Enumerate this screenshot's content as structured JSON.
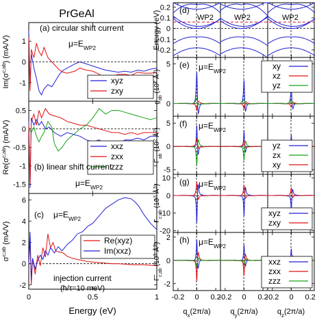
{
  "figure_title": "PrGeAl",
  "chart_data": [
    {
      "id": "a",
      "type": "line",
      "panel_label": "(a) circular shift current",
      "annotation": "μ=E",
      "annotation_sub": "WP2",
      "ylabel": "Im(σ^{c;ab}) (mA/V²)",
      "ylabel_main": "Im(σ",
      "ylabel_sup": "c;ab",
      "ylabel_rest": ") (mA/V",
      "ylabel_end": ")",
      "ylim": [
        -1.9,
        1.9
      ],
      "xlim": [
        0,
        1
      ],
      "yticks": [
        "-1",
        "0",
        "1"
      ],
      "legend_position": "bottom-right",
      "series": [
        {
          "name": "xyz",
          "color": "#1f1fd6",
          "x": [
            0,
            0.01,
            0.02,
            0.04,
            0.06,
            0.08,
            0.1,
            0.12,
            0.15,
            0.18,
            0.21,
            0.24,
            0.27,
            0.3,
            0.33,
            0.36,
            0.4,
            0.45,
            0.5,
            0.55,
            0.6,
            0.65,
            0.7,
            0.75,
            0.8,
            0.85,
            0.9,
            0.95,
            1.0
          ],
          "y": [
            1.5,
            -1.2,
            0.4,
            -0.3,
            -0.8,
            -1.4,
            -1.6,
            -1.3,
            -1.1,
            -1.2,
            -0.9,
            -0.6,
            -0.4,
            -0.3,
            -0.2,
            -0.1,
            0.0,
            -0.1,
            -0.2,
            -0.3,
            -0.4,
            -0.45,
            -0.5,
            -0.45,
            -0.5,
            -0.4,
            -0.45,
            -0.35,
            -0.3
          ]
        },
        {
          "name": "zxy",
          "color": "#e01010",
          "x": [
            0,
            0.01,
            0.02,
            0.04,
            0.06,
            0.08,
            0.1,
            0.12,
            0.15,
            0.18,
            0.21,
            0.24,
            0.27,
            0.3,
            0.33,
            0.36,
            0.4,
            0.45,
            0.5,
            0.55,
            0.6,
            0.65,
            0.7,
            0.75,
            0.8,
            0.85,
            0.9,
            0.95,
            1.0
          ],
          "y": [
            1.2,
            -1.4,
            0.6,
            0.2,
            0.9,
            0.5,
            0.3,
            0.7,
            0.2,
            0.0,
            -0.2,
            -0.4,
            -0.5,
            -0.55,
            -0.5,
            -0.45,
            -0.3,
            -0.4,
            -0.45,
            -0.6,
            -0.8,
            -0.7,
            -0.6,
            -0.6,
            -0.65,
            -0.5,
            -0.55,
            -0.55,
            -0.5
          ]
        }
      ]
    },
    {
      "id": "b",
      "type": "line",
      "panel_label": "(b)",
      "panel_text": "linear shift current",
      "annotation": "μ=E",
      "annotation_sub": "WP2",
      "ylabel_main": "Re(σ",
      "ylabel_sup": "c;ab",
      "ylabel_rest": ") (mA/V",
      "ylabel_end": ")",
      "ylim": [
        -1.75,
        0.75
      ],
      "xlim": [
        0,
        1
      ],
      "yticks": [
        "-1.5",
        "-1",
        "-0.5",
        "0",
        "0.5"
      ],
      "legend_position": "bottom-right",
      "series": [
        {
          "name": "xxz",
          "color": "#1f1fd6",
          "x": [
            0,
            0.01,
            0.02,
            0.04,
            0.06,
            0.08,
            0.1,
            0.13,
            0.16,
            0.2,
            0.25,
            0.3,
            0.35,
            0.4,
            0.45,
            0.5,
            0.55,
            0.6,
            0.65,
            0.7,
            0.75,
            0.8,
            0.85,
            0.9,
            0.95,
            1.0
          ],
          "y": [
            0.2,
            -1.6,
            0.3,
            0.1,
            0.25,
            0.1,
            0.2,
            0.0,
            0.05,
            -0.1,
            -0.2,
            -0.1,
            -0.15,
            -0.2,
            -0.3,
            -0.35,
            -0.3,
            -0.4,
            -0.35,
            -0.4,
            -0.3,
            -0.3,
            -0.25,
            -0.3,
            -0.2,
            -0.2
          ]
        },
        {
          "name": "zxx",
          "color": "#e01010",
          "x": [
            0,
            0.01,
            0.02,
            0.04,
            0.06,
            0.08,
            0.1,
            0.13,
            0.16,
            0.2,
            0.25,
            0.3,
            0.35,
            0.4,
            0.45,
            0.5,
            0.55,
            0.6,
            0.65,
            0.7,
            0.75,
            0.8,
            0.85,
            0.9,
            0.95,
            1.0
          ],
          "y": [
            0.1,
            -1.5,
            0.2,
            0.4,
            0.1,
            0.5,
            0.3,
            0.55,
            0.4,
            0.35,
            0.3,
            0.2,
            0.15,
            0.1,
            0.1,
            0.05,
            0.0,
            -0.05,
            -0.1,
            -0.1,
            -0.15,
            -0.1,
            -0.15,
            -0.1,
            -0.1,
            -0.1
          ]
        },
        {
          "name": "zzz",
          "color": "#18a018",
          "x": [
            0,
            0.02,
            0.04,
            0.06,
            0.08,
            0.1,
            0.12,
            0.15,
            0.18,
            0.2,
            0.23,
            0.26,
            0.3,
            0.35,
            0.4,
            0.45,
            0.5,
            0.55,
            0.6,
            0.65,
            0.7,
            0.75,
            0.8,
            0.85,
            0.9,
            0.95,
            1.0
          ],
          "y": [
            0.0,
            -0.1,
            0.05,
            -0.2,
            -0.35,
            -0.2,
            -0.1,
            0.2,
            0.05,
            -0.4,
            -0.6,
            -0.5,
            -0.3,
            -0.15,
            0.0,
            0.1,
            0.3,
            0.55,
            0.4,
            0.5,
            0.5,
            0.45,
            0.4,
            0.35,
            0.3,
            0.25,
            0.3
          ]
        }
      ]
    },
    {
      "id": "c",
      "type": "line",
      "panel_label": "(c)",
      "annotation": "μ=E",
      "annotation_sub": "WP2",
      "panel_text": "injection current",
      "panel_text2": "(ħ/τ=10 meV)",
      "ylabel_main": "σ",
      "ylabel_sup": "c;ab",
      "ylabel_rest": " (mA/V",
      "ylabel_end": ")",
      "ylim": [
        -2.4,
        6.6
      ],
      "xlim": [
        0,
        1
      ],
      "xlabel": "Energy (eV)",
      "xticks": [
        "0",
        "0.5",
        "1"
      ],
      "yticks": [
        "-2",
        "0",
        "2",
        "4",
        "6"
      ],
      "legend_position": "center-right",
      "series": [
        {
          "name": "Re(xyz)",
          "color": "#e01010",
          "x": [
            0,
            0.01,
            0.02,
            0.03,
            0.05,
            0.07,
            0.09,
            0.11,
            0.13,
            0.15,
            0.17,
            0.19,
            0.21,
            0.24,
            0.27,
            0.3,
            0.34,
            0.38,
            0.42,
            0.46,
            0.5,
            0.55,
            0.6,
            0.65,
            0.7,
            0.75,
            0.8,
            0.85,
            0.9,
            0.95,
            1.0
          ],
          "y": [
            0,
            2.2,
            -2.0,
            0.5,
            -1.0,
            0.8,
            -0.2,
            1.5,
            0.6,
            2.8,
            1.5,
            2.0,
            1.2,
            1.1,
            1.0,
            0.7,
            0.5,
            0.4,
            0.3,
            0.2,
            0.15,
            0.1,
            0.05,
            0.0,
            0.0,
            -0.05,
            -0.1,
            -0.1,
            -0.1,
            -0.15,
            -0.2
          ]
        },
        {
          "name": "Im(xxz)",
          "color": "#1f1fd6",
          "x": [
            0,
            0.01,
            0.02,
            0.03,
            0.05,
            0.07,
            0.09,
            0.11,
            0.13,
            0.15,
            0.17,
            0.2,
            0.23,
            0.26,
            0.3,
            0.34,
            0.38,
            0.42,
            0.46,
            0.5,
            0.55,
            0.6,
            0.65,
            0.7,
            0.75,
            0.8,
            0.83,
            0.86,
            0.9,
            0.95,
            1.0
          ],
          "y": [
            0,
            3.0,
            -1.5,
            0.5,
            -0.5,
            0.3,
            0.8,
            0.4,
            1.2,
            0.8,
            1.5,
            1.0,
            1.6,
            1.2,
            1.8,
            2.2,
            2.8,
            3.0,
            3.5,
            3.8,
            4.5,
            5.2,
            5.6,
            6.0,
            6.2,
            6.1,
            5.8,
            5.4,
            4.6,
            3.8,
            3.2
          ]
        }
      ]
    },
    {
      "id": "d",
      "type": "line",
      "panel_label": "(d)",
      "ylabel": "Energy (eV)",
      "ylim": [
        -0.27,
        0.24
      ],
      "yticks": [
        "-0.2",
        "-0.1",
        "0",
        "0.1",
        "0.2"
      ],
      "wp_label": "WP2",
      "wp_energy": 0.06
    },
    {
      "id": "e",
      "type": "line",
      "panel_label": "(e)",
      "annotation": "μ=E",
      "annotation_sub": "WP2",
      "ylabel_main": "g",
      "ylabel_sub": "ab",
      "ylabel_rest": " (10",
      "ylabel_sup2": "2",
      "ylabel_end": " Å",
      "ylabel_sup3": "2",
      "ylabel_close": ")",
      "ylim": [
        -1.6,
        5.8
      ],
      "yticks": [
        "0",
        "5"
      ],
      "legend_position": "top-right",
      "series_names": [
        "xy",
        "xz",
        "yz"
      ],
      "series_colors": [
        "#1f1fd6",
        "#e01010",
        "#18a018"
      ]
    },
    {
      "id": "f",
      "type": "line",
      "panel_label": "(f)",
      "annotation": "μ=E",
      "annotation_sub": "WP2",
      "ylabel_main": "F",
      "ylabel_sub": "ab",
      "ylabel_rest": " (10",
      "ylabel_sup2": "2",
      "ylabel_end": " Å",
      "ylabel_sup3": "2",
      "ylabel_close": ")",
      "ylim": [
        -6.0,
        6.5
      ],
      "yticks": [
        "-5",
        "0",
        "5"
      ],
      "legend_position": "right",
      "series_names": [
        "yz",
        "zx",
        "xy"
      ],
      "series_colors": [
        "#1f1fd6",
        "#18a018",
        "#e01010"
      ]
    },
    {
      "id": "g",
      "type": "line",
      "panel_label": "(g)",
      "annotation": "μ=E",
      "annotation_sub": "WP2",
      "ylabel_main": "Γ",
      "ylabel_sub": "c;ab",
      "ylabel_rest": " (10",
      "ylabel_sup2": "3",
      "ylabel_end": " Å",
      "ylabel_sup3": "3",
      "ylabel_close": ")",
      "ylim": [
        -21,
        12
      ],
      "yticks": [
        "-20",
        "-10",
        "0",
        "10"
      ],
      "legend_position": "bottom-right",
      "series_names": [
        "xyz",
        "zxy"
      ],
      "series_colors": [
        "#1f1fd6",
        "#e01010"
      ]
    },
    {
      "id": "h",
      "type": "line",
      "panel_label": "(h)",
      "annotation": "μ=E",
      "annotation_sub": "WP2",
      "ylabel_main": "Γ̃",
      "ylabel_sub": "c;ab",
      "ylabel_rest": " (10",
      "ylabel_sup2": "3",
      "ylabel_end": " Å",
      "ylabel_sup3": "3",
      "ylabel_close": ")",
      "ylim": [
        -2.6,
        2.4
      ],
      "yticks": [
        "-2",
        "0",
        "2"
      ],
      "legend_position": "bottom-right",
      "series_names": [
        "xxz",
        "zxx",
        "zzz"
      ],
      "series_colors": [
        "#1f1fd6",
        "#e01010",
        "#18a018"
      ],
      "xticks": [
        "-0.2",
        "0",
        "0.2",
        "-0.2",
        "0",
        "0.2",
        "-0.2",
        "0",
        "0.2"
      ],
      "xlabels": [
        {
          "main": "q",
          "sub": "x",
          "rest": "(2π/a)"
        },
        {
          "main": "q",
          "sub": "y",
          "rest": "(2π/a)"
        },
        {
          "main": "q",
          "sub": "z",
          "rest": "(2π/a)"
        }
      ]
    }
  ]
}
